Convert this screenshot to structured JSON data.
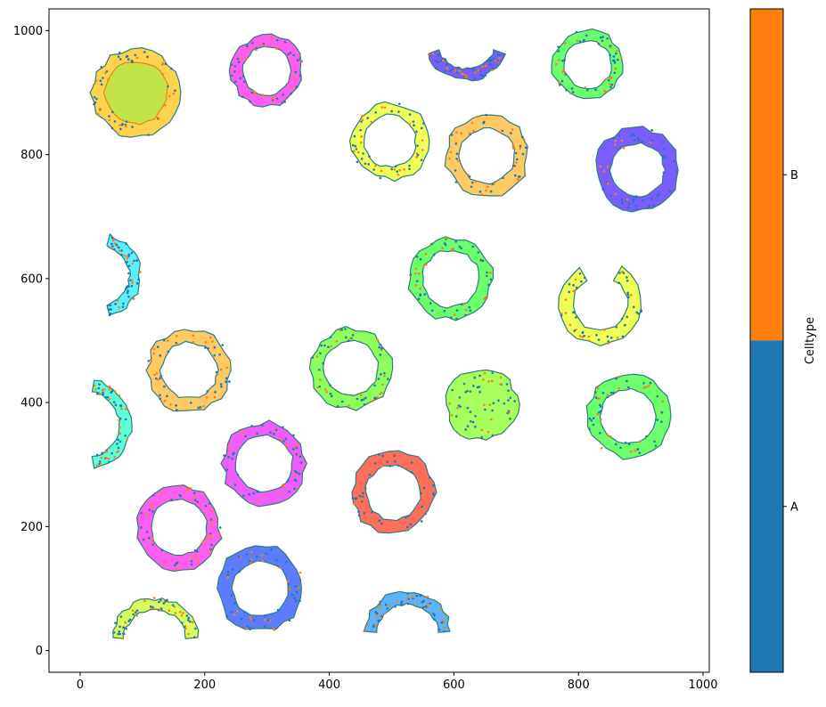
{
  "chart_data": {
    "type": "scatter",
    "xlim": [
      -50,
      1010
    ],
    "ylim": [
      -35,
      1035
    ],
    "x_ticks": [
      "0",
      "200",
      "400",
      "600",
      "800",
      "1000"
    ],
    "y_ticks": [
      "0",
      "200",
      "400",
      "600",
      "800",
      "1000"
    ],
    "colorbar": {
      "label": "Celltype",
      "categories": [
        "A",
        "B"
      ],
      "colors": [
        "#1f77b4",
        "#ff7f0e"
      ]
    },
    "point_colors": {
      "A": "#1f77b4",
      "B": "#ff7f0e"
    },
    "regions": [
      {
        "shape": "ring",
        "cx": 90,
        "cy": 900,
        "r": 60,
        "w": 20,
        "fill": "#ffd24d",
        "inner_fill": "#c3e34a"
      },
      {
        "shape": "ring",
        "cx": 300,
        "cy": 935,
        "r": 48,
        "w": 18,
        "fill": "#ff5cf0"
      },
      {
        "shape": "arc",
        "cx": 620,
        "cy": 985,
        "r": 56,
        "w": 18,
        "start": 200,
        "end": 340,
        "fill": "#7b5cff"
      },
      {
        "shape": "ring",
        "cx": 815,
        "cy": 945,
        "r": 47,
        "w": 18,
        "fill": "#6dff6b"
      },
      {
        "shape": "ring",
        "cx": 497,
        "cy": 822,
        "r": 52,
        "w": 20,
        "fill": "#f0ff57"
      },
      {
        "shape": "ring",
        "cx": 653,
        "cy": 798,
        "r": 55,
        "w": 22,
        "fill": "#ffc966"
      },
      {
        "shape": "ring",
        "cx": 895,
        "cy": 775,
        "r": 55,
        "w": 24,
        "fill": "#7b5cff"
      },
      {
        "shape": "arc",
        "cx": 30,
        "cy": 605,
        "r": 58,
        "w": 18,
        "start": -75,
        "end": 75,
        "fill": "#5cf0ff"
      },
      {
        "shape": "ring",
        "cx": 595,
        "cy": 600,
        "r": 56,
        "w": 20,
        "fill": "#6dff6b"
      },
      {
        "shape": "arc",
        "cx": 835,
        "cy": 560,
        "r": 55,
        "w": 22,
        "start": 120,
        "end": 420,
        "fill": "#f0ff57"
      },
      {
        "shape": "ring",
        "cx": 175,
        "cy": 452,
        "r": 56,
        "w": 22,
        "fill": "#ffc966"
      },
      {
        "shape": "ring",
        "cx": 435,
        "cy": 455,
        "r": 54,
        "w": 20,
        "fill": "#8cff5c"
      },
      {
        "shape": "blob",
        "cx": 645,
        "cy": 397,
        "r": 57,
        "fill": "#a6ff5c"
      },
      {
        "shape": "ring",
        "cx": 880,
        "cy": 378,
        "r": 55,
        "w": 22,
        "fill": "#6dff6b"
      },
      {
        "shape": "arc",
        "cx": 10,
        "cy": 365,
        "r": 62,
        "w": 18,
        "start": -80,
        "end": 80,
        "fill": "#5cffd6"
      },
      {
        "shape": "ring",
        "cx": 295,
        "cy": 302,
        "r": 56,
        "w": 20,
        "fill": "#f05cff"
      },
      {
        "shape": "ring",
        "cx": 503,
        "cy": 255,
        "r": 55,
        "w": 22,
        "fill": "#ff6e5c"
      },
      {
        "shape": "ring",
        "cx": 158,
        "cy": 198,
        "r": 56,
        "w": 22,
        "fill": "#ff5cf0"
      },
      {
        "shape": "ring",
        "cx": 290,
        "cy": 100,
        "r": 57,
        "w": 24,
        "fill": "#5c7bff"
      },
      {
        "shape": "arc",
        "cx": 120,
        "cy": 15,
        "r": 60,
        "w": 18,
        "start": 5,
        "end": 175,
        "fill": "#d6ff5c"
      },
      {
        "shape": "arc",
        "cx": 525,
        "cy": 25,
        "r": 60,
        "w": 20,
        "start": 5,
        "end": 175,
        "fill": "#5cb4ff"
      }
    ]
  }
}
